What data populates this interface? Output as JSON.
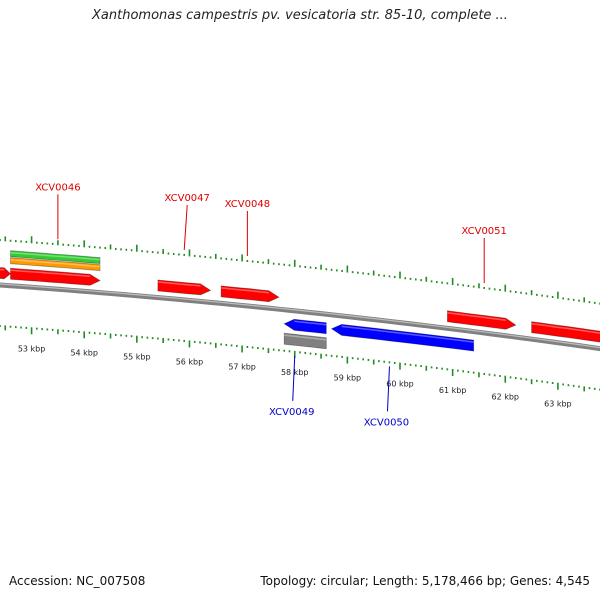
{
  "title": "Xanthomonas campestris pv. vesicatoria str. 85-10, complete ...",
  "footer": {
    "accession": "Accession: NC_007508",
    "summary": "Topology: circular; Length: 5,178,466 bp; Genes: 4,545"
  },
  "colors": {
    "forward": "#ff0000",
    "reverse": "#0000ff",
    "pseudo": "#808080",
    "tick": "#228b22",
    "backbone": "#808080",
    "track_green": "#33cc33",
    "track_orange": "#ff9900",
    "label_red": "#dd0000",
    "label_blue": "#0000cc"
  },
  "ruler": {
    "unit": "kbp",
    "positions_kbp": [
      53,
      54,
      55,
      56,
      57,
      58,
      59,
      60,
      61,
      62,
      63
    ],
    "labels": [
      "53 kbp",
      "54 kbp",
      "55 kbp",
      "56 kbp",
      "57 kbp",
      "58 kbp",
      "59 kbp",
      "60 kbp",
      "61 kbp",
      "62 kbp",
      "63 kbp"
    ]
  },
  "genes": [
    {
      "name": "",
      "strand": "+",
      "start_kbp": 52.3,
      "end_kbp": 52.6,
      "kind": "cds"
    },
    {
      "name": "XCV0046",
      "strand": "+",
      "start_kbp": 52.6,
      "end_kbp": 54.3,
      "kind": "cds",
      "label_kbp": 53.5
    },
    {
      "name": "XCV0047",
      "strand": "+",
      "start_kbp": 55.4,
      "end_kbp": 56.4,
      "kind": "cds",
      "label_kbp": 55.9
    },
    {
      "name": "XCV0048",
      "strand": "+",
      "start_kbp": 56.6,
      "end_kbp": 57.7,
      "kind": "cds",
      "label_kbp": 57.1
    },
    {
      "name": "XCV0049",
      "strand": "-",
      "start_kbp": 57.8,
      "end_kbp": 58.6,
      "kind": "cds",
      "label_kbp": 58.0
    },
    {
      "name": "",
      "strand": "-",
      "start_kbp": 57.8,
      "end_kbp": 58.6,
      "kind": "pseudo"
    },
    {
      "name": "XCV0050",
      "strand": "-",
      "start_kbp": 58.7,
      "end_kbp": 61.4,
      "kind": "cds",
      "label_kbp": 59.8
    },
    {
      "name": "XCV0051",
      "strand": "+",
      "start_kbp": 60.9,
      "end_kbp": 62.2,
      "kind": "cds",
      "label_kbp": 61.6
    },
    {
      "name": "",
      "strand": "+",
      "start_kbp": 62.5,
      "end_kbp": 64.0,
      "kind": "cds"
    }
  ],
  "extra_tracks": [
    {
      "kind": "green",
      "start_kbp": 52.6,
      "end_kbp": 54.3
    },
    {
      "kind": "orange",
      "start_kbp": 52.6,
      "end_kbp": 54.3
    }
  ]
}
